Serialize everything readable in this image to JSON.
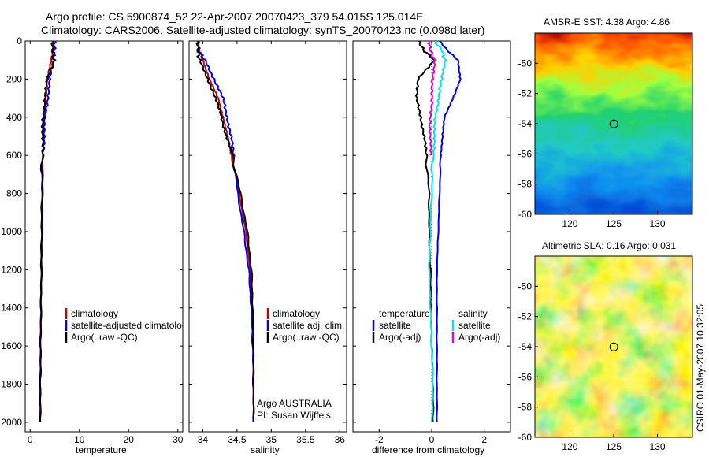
{
  "figure": {
    "title_line1": "Argo profile: CS 5900874_52 22-Apr-2007 20070423_379 54.015S 125.014E",
    "title_line2": "Climatology: CARS2006. Satellite-adjusted climatology: synTS_20070423.nc (0.098d later)",
    "side_label": "CSIRO 01-May-2007 10:32:05",
    "credit_line1": "Argo AUSTRALIA",
    "credit_line2": "PI: Susan Wijffels"
  },
  "colors": {
    "red": "#cc0000",
    "blue": "#0000ee",
    "black": "#000000",
    "cyan": "#00e5e5",
    "magenta": "#e000e0"
  },
  "chart_data": [
    {
      "type": "line",
      "id": "temperature",
      "xlabel": "temperature",
      "ylabel": "",
      "xlim": [
        -1,
        31
      ],
      "ylim": [
        2050,
        0
      ],
      "xticks": [
        0,
        10,
        20,
        30
      ],
      "yticks": [
        0,
        200,
        400,
        600,
        800,
        1000,
        1200,
        1400,
        1600,
        1800,
        2000
      ],
      "legend": [
        "climatology",
        "satellite-adjusted climatology",
        "Argo(..raw -QC)"
      ],
      "series": [
        {
          "name": "climatology",
          "color": "red",
          "x": [
            4.7,
            4.6,
            4.3,
            3.5,
            3.1,
            2.9,
            2.7,
            2.6,
            2.5,
            2.4,
            2.3,
            2.2,
            2.1,
            2.05,
            2.0
          ],
          "y": [
            0,
            50,
            100,
            200,
            300,
            400,
            500,
            600,
            800,
            1000,
            1200,
            1400,
            1600,
            1800,
            2000
          ]
        },
        {
          "name": "satellite-adjusted climatology",
          "color": "blue",
          "x": [
            5.0,
            4.9,
            4.7,
            4.1,
            3.5,
            3.1,
            2.8,
            2.6,
            2.5,
            2.4,
            2.3,
            2.2,
            2.1,
            2.05,
            2.0
          ],
          "y": [
            0,
            50,
            100,
            200,
            300,
            400,
            500,
            600,
            800,
            1000,
            1200,
            1400,
            1600,
            1800,
            2000
          ]
        },
        {
          "name": "Argo(..raw -QC)",
          "color": "black",
          "x": [
            4.5,
            4.6,
            4.8,
            3.6,
            2.9,
            2.7,
            2.5,
            2.45,
            2.4,
            2.3,
            2.25,
            2.2,
            2.15,
            2.1,
            2.05
          ],
          "y": [
            0,
            50,
            100,
            200,
            300,
            400,
            500,
            600,
            800,
            1000,
            1200,
            1400,
            1600,
            1800,
            2000
          ]
        }
      ]
    },
    {
      "type": "line",
      "id": "salinity",
      "xlabel": "salinity",
      "ylabel": "",
      "xlim": [
        33.8,
        36.1
      ],
      "ylim": [
        2050,
        0
      ],
      "xticks": [
        34,
        34.5,
        35,
        35.5,
        36
      ],
      "xticklabels": [
        "34",
        "34.5",
        "35",
        "35.5",
        "36"
      ],
      "legend": [
        "climatology",
        "satellite adj. clim.",
        "Argo(..raw -QC)"
      ],
      "series": [
        {
          "name": "climatology",
          "color": "red",
          "x": [
            33.93,
            33.95,
            34.0,
            34.1,
            34.22,
            34.3,
            34.36,
            34.42,
            34.53,
            34.63,
            34.69,
            34.72,
            34.73,
            34.74,
            34.74
          ],
          "y": [
            0,
            50,
            100,
            200,
            300,
            400,
            500,
            600,
            800,
            1000,
            1200,
            1400,
            1600,
            1800,
            2000
          ]
        },
        {
          "name": "satellite adj. clim.",
          "color": "blue",
          "x": [
            33.93,
            33.94,
            34.03,
            34.17,
            34.29,
            34.36,
            34.41,
            34.45,
            34.51,
            34.6,
            34.67,
            34.71,
            34.73,
            34.74,
            34.74
          ],
          "y": [
            0,
            50,
            100,
            200,
            300,
            400,
            500,
            600,
            800,
            1000,
            1200,
            1400,
            1600,
            1800,
            2000
          ]
        },
        {
          "name": "Argo(..raw -QC)",
          "color": "black",
          "x": [
            33.92,
            33.93,
            33.95,
            34.08,
            34.18,
            34.28,
            34.34,
            34.43,
            34.55,
            34.65,
            34.71,
            34.73,
            34.74,
            34.74,
            34.74
          ],
          "y": [
            0,
            50,
            100,
            200,
            300,
            400,
            500,
            600,
            800,
            1000,
            1200,
            1400,
            1600,
            1800,
            2000
          ]
        }
      ]
    },
    {
      "type": "line",
      "id": "difference",
      "xlabel": "difference from climatology",
      "ylabel": "",
      "xlim": [
        -3,
        3
      ],
      "ylim": [
        2050,
        0
      ],
      "xticks": [
        -2,
        0,
        2
      ],
      "legend_left_header": "temperature",
      "legend_right_header": "salinity",
      "legend": [
        "satellite",
        "Argo(-adj)",
        "satellite",
        "Argo(-adj)"
      ],
      "series": [
        {
          "name": "satellite",
          "group": "temperature",
          "color": "blue",
          "x": [
            0.3,
            0.6,
            1.0,
            1.1,
            0.8,
            0.5,
            0.4,
            0.35,
            0.3,
            0.25,
            0.2,
            0.2,
            0.2,
            0.2,
            0.2
          ],
          "y": [
            0,
            50,
            100,
            200,
            300,
            400,
            500,
            600,
            800,
            1000,
            1200,
            1400,
            1600,
            1800,
            2000
          ]
        },
        {
          "name": "Argo(-adj)",
          "group": "temperature",
          "color": "black",
          "x": [
            -0.5,
            -0.3,
            0.1,
            -0.5,
            -0.6,
            -0.4,
            -0.3,
            -0.2,
            -0.1,
            -0.1,
            -0.05,
            -0.02,
            0.0,
            0.05,
            0.05
          ],
          "y": [
            0,
            50,
            100,
            200,
            300,
            400,
            500,
            600,
            800,
            1000,
            1200,
            1400,
            1600,
            1800,
            2000
          ]
        },
        {
          "name": "satellite",
          "group": "salinity",
          "color": "cyan",
          "x": [
            0.1,
            0.4,
            0.5,
            0.4,
            0.25,
            0.15,
            0.1,
            0.05,
            0.0,
            -0.05,
            -0.1,
            -0.05,
            0.0,
            0.05,
            0.0
          ],
          "y": [
            0,
            50,
            100,
            200,
            300,
            400,
            500,
            600,
            800,
            1000,
            1200,
            1400,
            1600,
            1800,
            2000
          ]
        },
        {
          "name": "Argo(-adj)",
          "group": "salinity",
          "color": "magenta",
          "x": [
            -0.1,
            -0.05,
            0.1,
            0.05,
            0.0,
            -0.05,
            -0.05,
            -0.05
          ],
          "y": [
            0,
            50,
            100,
            200,
            300,
            400,
            500,
            600
          ]
        }
      ]
    },
    {
      "type": "heatmap",
      "id": "sst-map",
      "title": "AMSR-E SST: 4.38 Argo: 4.86",
      "xlim": [
        116,
        134
      ],
      "ylim": [
        -60,
        -48
      ],
      "xticks": [
        120,
        125,
        130
      ],
      "yticks": [
        -60,
        -58,
        -56,
        -54,
        -52,
        -50
      ],
      "marker": {
        "lon": 125.014,
        "lat": -54.015
      }
    },
    {
      "type": "heatmap",
      "id": "sla-map",
      "title": "Altimetric SLA: 0.16 Argo: 0.031",
      "xlim": [
        116,
        134
      ],
      "ylim": [
        -60,
        -48
      ],
      "xticks": [
        120,
        125,
        130
      ],
      "yticks": [
        -60,
        -58,
        -56,
        -54,
        -52,
        -50
      ],
      "marker": {
        "lon": 125.014,
        "lat": -54.015
      }
    }
  ]
}
